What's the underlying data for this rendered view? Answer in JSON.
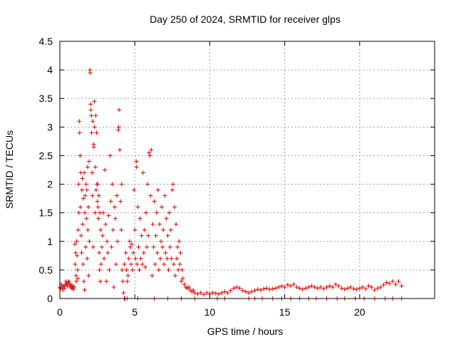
{
  "chart_data": {
    "type": "scatter",
    "title": "Day 250 of 2024, SRMTID for receiver glps",
    "xlabel": "GPS time / hours",
    "ylabel": "SRMTID / TECUs",
    "xlim": [
      0,
      25
    ],
    "ylim": [
      0,
      4.5
    ],
    "x_ticks": [
      0,
      5,
      10,
      15,
      20
    ],
    "x_tick_labels": [
      "0",
      "5",
      "10",
      "15",
      "20"
    ],
    "y_ticks": [
      0,
      0.5,
      1,
      1.5,
      2,
      2.5,
      3,
      3.5,
      4,
      4.5
    ],
    "y_tick_labels": [
      "0",
      "0.5",
      "1",
      "1.5",
      "2",
      "2.5",
      "3",
      "3.5",
      "4",
      "4.5"
    ],
    "grid": true,
    "marker": "+",
    "marker_color": "#e00000",
    "series": [
      {
        "name": "SRMTID",
        "points": [
          [
            0.0,
            0.2
          ],
          [
            0.05,
            0.18
          ],
          [
            0.1,
            0.25
          ],
          [
            0.15,
            0.2
          ],
          [
            0.2,
            0.15
          ],
          [
            0.25,
            0.22
          ],
          [
            0.3,
            0.18
          ],
          [
            0.35,
            0.24
          ],
          [
            0.4,
            0.3
          ],
          [
            0.45,
            0.26
          ],
          [
            0.5,
            0.22
          ],
          [
            0.55,
            0.28
          ],
          [
            0.6,
            0.3
          ],
          [
            0.65,
            0.25
          ],
          [
            0.7,
            0.2
          ],
          [
            0.75,
            0.24
          ],
          [
            0.8,
            0.18
          ],
          [
            0.85,
            0.22
          ],
          [
            0.9,
            0.16
          ],
          [
            0.95,
            0.2
          ],
          [
            1.0,
            0.95
          ],
          [
            1.02,
            0.6
          ],
          [
            1.05,
            0.8
          ],
          [
            1.08,
            0.4
          ],
          [
            1.1,
            0.3
          ],
          [
            1.12,
            1.0
          ],
          [
            1.15,
            0.75
          ],
          [
            1.18,
            0.5
          ],
          [
            1.2,
            0.35
          ],
          [
            1.22,
            1.2
          ],
          [
            1.25,
            2.0
          ],
          [
            1.27,
            1.5
          ],
          [
            1.3,
            3.1
          ],
          [
            1.32,
            2.9
          ],
          [
            1.35,
            2.5
          ],
          [
            1.37,
            1.6
          ],
          [
            1.4,
            2.2
          ],
          [
            1.42,
            1.1
          ],
          [
            1.45,
            0.8
          ],
          [
            1.47,
            1.9
          ],
          [
            1.5,
            2.1
          ],
          [
            1.52,
            1.3
          ],
          [
            1.55,
            0.6
          ],
          [
            1.57,
            1.75
          ],
          [
            1.6,
            0.3
          ],
          [
            1.62,
            2.2
          ],
          [
            1.65,
            0.15
          ],
          [
            1.67,
            1.5
          ],
          [
            1.7,
            1.8
          ],
          [
            1.72,
            0.9
          ],
          [
            1.75,
            2.0
          ],
          [
            1.77,
            1.4
          ],
          [
            1.8,
            1.9
          ],
          [
            1.82,
            0.7
          ],
          [
            1.85,
            2.3
          ],
          [
            1.87,
            1.2
          ],
          [
            1.9,
            1.6
          ],
          [
            1.92,
            0.4
          ],
          [
            1.95,
            2.4
          ],
          [
            1.97,
            1.0
          ],
          [
            2.0,
            4.0
          ],
          [
            2.02,
            3.95
          ],
          [
            2.05,
            3.4
          ],
          [
            2.07,
            3.3
          ],
          [
            2.1,
            3.2
          ],
          [
            2.12,
            2.9
          ],
          [
            2.15,
            2.2
          ],
          [
            2.17,
            1.8
          ],
          [
            2.2,
            3.1
          ],
          [
            2.22,
            0.9
          ],
          [
            2.25,
            2.7
          ],
          [
            2.27,
            2.65
          ],
          [
            2.3,
            3.45
          ],
          [
            2.32,
            3.0
          ],
          [
            2.35,
            1.5
          ],
          [
            2.37,
            2.3
          ],
          [
            2.4,
            3.2
          ],
          [
            2.42,
            1.9
          ],
          [
            2.45,
            2.9
          ],
          [
            2.47,
            2.0
          ],
          [
            2.5,
            1.7
          ],
          [
            2.52,
            2.0
          ],
          [
            2.55,
            1.6
          ],
          [
            2.57,
            1.4
          ],
          [
            2.6,
            1.8
          ],
          [
            2.62,
            0.8
          ],
          [
            2.65,
            0.5
          ],
          [
            2.67,
            1.5
          ],
          [
            2.7,
            0.3
          ],
          [
            2.72,
            1.2
          ],
          [
            2.75,
            0.6
          ],
          [
            2.8,
            0.9
          ],
          [
            2.85,
            1.1
          ],
          [
            2.9,
            1.5
          ],
          [
            2.95,
            0.7
          ],
          [
            3.0,
            2.25
          ],
          [
            3.05,
            1.3
          ],
          [
            3.1,
            0.3
          ],
          [
            3.15,
            1.0
          ],
          [
            3.2,
            0.8
          ],
          [
            3.25,
            1.45
          ],
          [
            3.3,
            0.5
          ],
          [
            3.35,
            2.5
          ],
          [
            3.4,
            1.7
          ],
          [
            3.45,
            0.9
          ],
          [
            3.5,
            2.0
          ],
          [
            3.55,
            1.2
          ],
          [
            3.6,
            0.2
          ],
          [
            3.65,
            1.6
          ],
          [
            3.7,
            1.4
          ],
          [
            3.75,
            0.6
          ],
          [
            3.8,
            1.8
          ],
          [
            3.85,
            1.0
          ],
          [
            3.9,
            2.95
          ],
          [
            3.92,
            3.0
          ],
          [
            3.95,
            3.3
          ],
          [
            4.0,
            2.6
          ],
          [
            4.05,
            1.7
          ],
          [
            4.1,
            1.2
          ],
          [
            4.12,
            2.0
          ],
          [
            4.15,
            0.5
          ],
          [
            4.2,
            0.3
          ],
          [
            4.25,
            0.1
          ],
          [
            4.3,
            0.6
          ],
          [
            4.35,
            0.0
          ],
          [
            4.4,
            0.8
          ],
          [
            4.45,
            0.5
          ],
          [
            4.5,
            0.3
          ],
          [
            4.55,
            0.4
          ],
          [
            4.6,
            0.7
          ],
          [
            4.65,
            1.0
          ],
          [
            4.7,
            0.9
          ],
          [
            4.75,
            0.6
          ],
          [
            4.8,
            0.95
          ],
          [
            4.85,
            0.5
          ],
          [
            4.9,
            0.8
          ],
          [
            4.95,
            1.9
          ],
          [
            5.0,
            1.2
          ],
          [
            5.05,
            0.7
          ],
          [
            5.1,
            2.4
          ],
          [
            5.12,
            2.3
          ],
          [
            5.15,
            0.6
          ],
          [
            5.2,
            1.6
          ],
          [
            5.25,
            0.9
          ],
          [
            5.3,
            0.5
          ],
          [
            5.35,
            1.4
          ],
          [
            5.4,
            0.7
          ],
          [
            5.45,
            1.1
          ],
          [
            5.5,
            0.6
          ],
          [
            5.55,
            2.2
          ],
          [
            5.6,
            0.8
          ],
          [
            5.65,
            1.2
          ],
          [
            5.7,
            0.55
          ],
          [
            5.75,
            1.5
          ],
          [
            5.8,
            0.9
          ],
          [
            5.85,
            2.0
          ],
          [
            5.9,
            1.1
          ],
          [
            5.95,
            2.55
          ],
          [
            6.0,
            2.5
          ],
          [
            6.05,
            1.8
          ],
          [
            6.1,
            2.6
          ],
          [
            6.15,
            0.4
          ],
          [
            6.2,
            1.3
          ],
          [
            6.25,
            0.9
          ],
          [
            6.3,
            1.7
          ],
          [
            6.35,
            0.6
          ],
          [
            6.4,
            1.1
          ],
          [
            6.45,
            1.5
          ],
          [
            6.5,
            0.8
          ],
          [
            6.55,
            1.9
          ],
          [
            6.6,
            0.5
          ],
          [
            6.65,
            1.3
          ],
          [
            6.7,
            0.7
          ],
          [
            6.75,
            1.0
          ],
          [
            6.8,
            1.6
          ],
          [
            6.85,
            0.9
          ],
          [
            6.9,
            1.2
          ],
          [
            6.95,
            0.6
          ],
          [
            7.0,
            1.8
          ],
          [
            7.05,
            0.8
          ],
          [
            7.1,
            1.4
          ],
          [
            7.15,
            0.7
          ],
          [
            7.2,
            1.1
          ],
          [
            7.25,
            0.5
          ],
          [
            7.3,
            1.5
          ],
          [
            7.35,
            0.9
          ],
          [
            7.4,
            1.2
          ],
          [
            7.45,
            0.7
          ],
          [
            7.5,
            1.9
          ],
          [
            7.55,
            2.0
          ],
          [
            7.6,
            0.6
          ],
          [
            7.65,
            1.6
          ],
          [
            7.7,
            0.4
          ],
          [
            7.75,
            1.3
          ],
          [
            7.8,
            0.7
          ],
          [
            7.85,
            0.9
          ],
          [
            7.9,
            0.5
          ],
          [
            7.95,
            1.0
          ],
          [
            8.0,
            0.6
          ],
          [
            8.05,
            0.8
          ],
          [
            8.1,
            0.3
          ],
          [
            8.15,
            0.5
          ],
          [
            8.2,
            0.35
          ],
          [
            8.3,
            0.25
          ],
          [
            8.4,
            0.2
          ],
          [
            8.5,
            0.18
          ],
          [
            8.6,
            0.2
          ],
          [
            8.7,
            0.15
          ],
          [
            8.8,
            0.12
          ],
          [
            8.9,
            0.15
          ],
          [
            9.0,
            0.1
          ],
          [
            9.2,
            0.08
          ],
          [
            9.4,
            0.1
          ],
          [
            9.6,
            0.07
          ],
          [
            9.8,
            0.1
          ],
          [
            10.0,
            0.08
          ],
          [
            10.2,
            0.1
          ],
          [
            10.4,
            0.09
          ],
          [
            10.6,
            0.08
          ],
          [
            10.8,
            0.1
          ],
          [
            11.0,
            0.12
          ],
          [
            11.2,
            0.1
          ],
          [
            11.4,
            0.14
          ],
          [
            11.6,
            0.18
          ],
          [
            11.8,
            0.2
          ],
          [
            12.0,
            0.18
          ],
          [
            12.2,
            0.14
          ],
          [
            12.4,
            0.12
          ],
          [
            12.6,
            0.1
          ],
          [
            12.8,
            0.12
          ],
          [
            13.0,
            0.14
          ],
          [
            13.2,
            0.16
          ],
          [
            13.4,
            0.15
          ],
          [
            13.6,
            0.17
          ],
          [
            13.8,
            0.18
          ],
          [
            14.0,
            0.16
          ],
          [
            14.2,
            0.17
          ],
          [
            14.4,
            0.18
          ],
          [
            14.6,
            0.2
          ],
          [
            14.8,
            0.22
          ],
          [
            15.0,
            0.2
          ],
          [
            15.2,
            0.24
          ],
          [
            15.4,
            0.22
          ],
          [
            15.6,
            0.25
          ],
          [
            15.8,
            0.2
          ],
          [
            16.0,
            0.18
          ],
          [
            16.2,
            0.16
          ],
          [
            16.4,
            0.18
          ],
          [
            16.6,
            0.2
          ],
          [
            16.8,
            0.22
          ],
          [
            17.0,
            0.2
          ],
          [
            17.2,
            0.18
          ],
          [
            17.4,
            0.2
          ],
          [
            17.6,
            0.17
          ],
          [
            17.8,
            0.2
          ],
          [
            18.0,
            0.22
          ],
          [
            18.2,
            0.2
          ],
          [
            18.4,
            0.25
          ],
          [
            18.6,
            0.22
          ],
          [
            18.8,
            0.18
          ],
          [
            19.0,
            0.16
          ],
          [
            19.2,
            0.18
          ],
          [
            19.4,
            0.2
          ],
          [
            19.6,
            0.17
          ],
          [
            19.8,
            0.16
          ],
          [
            20.0,
            0.18
          ],
          [
            20.2,
            0.2
          ],
          [
            20.4,
            0.17
          ],
          [
            20.6,
            0.22
          ],
          [
            20.8,
            0.2
          ],
          [
            21.0,
            0.15
          ],
          [
            21.2,
            0.18
          ],
          [
            21.4,
            0.2
          ],
          [
            21.6,
            0.24
          ],
          [
            21.8,
            0.28
          ],
          [
            22.0,
            0.26
          ],
          [
            22.2,
            0.3
          ],
          [
            22.4,
            0.25
          ],
          [
            22.6,
            0.3
          ],
          [
            22.8,
            0.22
          ],
          [
            4.3,
            0.0
          ],
          [
            4.5,
            0.0
          ],
          [
            5.2,
            0.0
          ],
          [
            6.3,
            0.0
          ],
          [
            7.2,
            0.0
          ],
          [
            8.1,
            0.0
          ],
          [
            9.0,
            0.0
          ],
          [
            10.5,
            0.0
          ],
          [
            11.0,
            0.0
          ],
          [
            12.6,
            0.0
          ],
          [
            13.0,
            0.0
          ],
          [
            13.5,
            0.0
          ],
          [
            14.2,
            0.0
          ],
          [
            14.8,
            0.0
          ],
          [
            15.4,
            0.0
          ],
          [
            16.0,
            0.0
          ],
          [
            16.6,
            0.0
          ],
          [
            17.1,
            0.0
          ],
          [
            17.8,
            0.0
          ],
          [
            18.5,
            0.0
          ],
          [
            19.0,
            0.0
          ],
          [
            19.7,
            0.0
          ],
          [
            20.3,
            0.0
          ],
          [
            21.0,
            0.0
          ],
          [
            21.7,
            0.0
          ],
          [
            22.2,
            0.0
          ],
          [
            22.8,
            0.0
          ]
        ]
      }
    ]
  }
}
